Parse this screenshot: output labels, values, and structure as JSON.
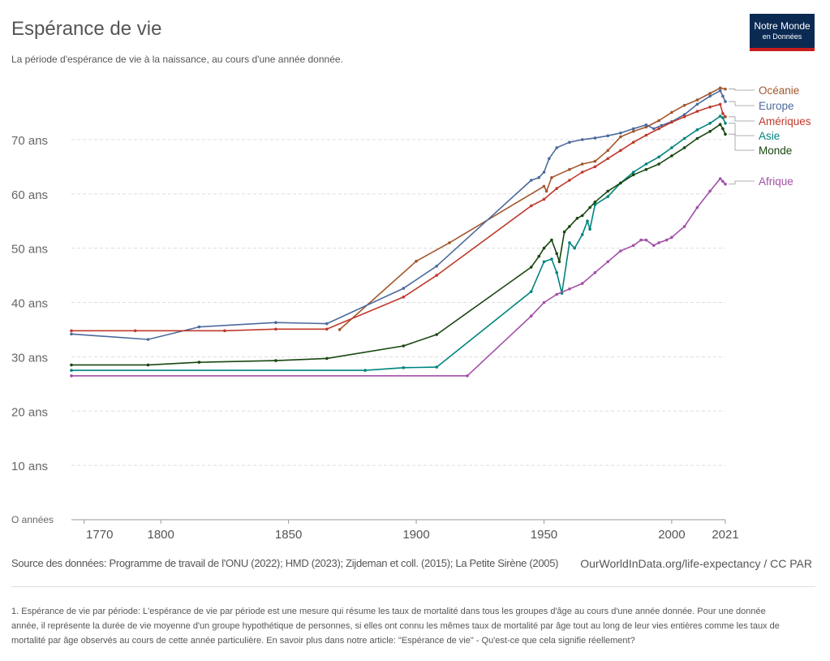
{
  "header": {
    "title": "Espérance de vie",
    "subtitle": "La période d'espérance de vie à la naissance, au cours d'une année donnée."
  },
  "logo": {
    "line1": "Notre Monde",
    "line2": "en Données"
  },
  "footer": {
    "source": "Source des données: Programme de travail de l'ONU (2022); HMD (2023); Zijdeman et coll. (2015); La Petite Sirène (2005)",
    "credit": "OurWorldInData.org/life-expectancy / CC PAR",
    "footnote": "1. Espérance de vie par période: L'espérance de vie par période est une mesure qui résume les taux de mortalité dans tous les groupes d'âge au cours d'une année donnée. Pour une donnée année, il représente la durée de vie moyenne d'un groupe hypothétique de personnes, si elles ont connu les mêmes taux de mortalité par âge tout au long de leur vies entières comme les taux de mortalité par âge observés au cours de cette année particulière. En savoir plus dans notre article: \"Espérance de vie\" - Qu'est-ce que cela signifie réellement?"
  },
  "chart_data": {
    "type": "line",
    "xlim": [
      1765,
      2021
    ],
    "ylim": [
      0,
      80
    ],
    "x_ticks": [
      1770,
      1800,
      1850,
      1900,
      1950,
      2000,
      2021
    ],
    "y_ticks": [
      {
        "value": 0,
        "label": "O années"
      },
      {
        "value": 10,
        "label": "10 ans"
      },
      {
        "value": 20,
        "label": "20 ans"
      },
      {
        "value": 30,
        "label": "30 ans"
      },
      {
        "value": 40,
        "label": "40 ans"
      },
      {
        "value": 50,
        "label": "50 ans"
      },
      {
        "value": 60,
        "label": "60 ans"
      },
      {
        "value": 70,
        "label": "70 ans"
      }
    ],
    "grid": true,
    "legend_placement": "right",
    "series": [
      {
        "name": "Océanie",
        "color": "#a2562c",
        "points": [
          [
            1870,
            35.0
          ],
          [
            1900,
            47.6
          ],
          [
            1913,
            51.0
          ],
          [
            1950,
            61.4
          ],
          [
            1951,
            60.5
          ],
          [
            1953,
            63.0
          ],
          [
            1960,
            64.5
          ],
          [
            1965,
            65.5
          ],
          [
            1970,
            66.0
          ],
          [
            1975,
            68.0
          ],
          [
            1980,
            70.5
          ],
          [
            1985,
            71.5
          ],
          [
            1990,
            72.3
          ],
          [
            1995,
            73.5
          ],
          [
            2000,
            75.0
          ],
          [
            2005,
            76.3
          ],
          [
            2010,
            77.3
          ],
          [
            2015,
            78.5
          ],
          [
            2019,
            79.5
          ],
          [
            2021,
            79.3
          ]
        ]
      },
      {
        "name": "Europe",
        "color": "#4c6a9c",
        "points": [
          [
            1765,
            34.2
          ],
          [
            1795,
            33.2
          ],
          [
            1815,
            35.5
          ],
          [
            1845,
            36.3
          ],
          [
            1865,
            36.1
          ],
          [
            1895,
            42.6
          ],
          [
            1908,
            46.7
          ],
          [
            1945,
            62.5
          ],
          [
            1948,
            63.0
          ],
          [
            1950,
            64.0
          ],
          [
            1952,
            66.5
          ],
          [
            1955,
            68.5
          ],
          [
            1960,
            69.5
          ],
          [
            1965,
            70.0
          ],
          [
            1970,
            70.3
          ],
          [
            1975,
            70.7
          ],
          [
            1980,
            71.2
          ],
          [
            1985,
            72.0
          ],
          [
            1990,
            72.7
          ],
          [
            1993,
            72.0
          ],
          [
            1996,
            72.6
          ],
          [
            2000,
            73.3
          ],
          [
            2005,
            74.6
          ],
          [
            2010,
            76.5
          ],
          [
            2015,
            78.0
          ],
          [
            2019,
            79.0
          ],
          [
            2020,
            78.0
          ],
          [
            2021,
            77.0
          ]
        ]
      },
      {
        "name": "Amériques",
        "color": "#c0392b",
        "points": [
          [
            1765,
            34.8
          ],
          [
            1790,
            34.8
          ],
          [
            1825,
            34.8
          ],
          [
            1845,
            35.1
          ],
          [
            1865,
            35.1
          ],
          [
            1895,
            41.0
          ],
          [
            1908,
            45.0
          ],
          [
            1945,
            57.8
          ],
          [
            1950,
            59.0
          ],
          [
            1955,
            61.0
          ],
          [
            1960,
            62.5
          ],
          [
            1965,
            64.0
          ],
          [
            1970,
            65.0
          ],
          [
            1975,
            66.5
          ],
          [
            1980,
            68.0
          ],
          [
            1985,
            69.5
          ],
          [
            1990,
            70.8
          ],
          [
            1995,
            72.0
          ],
          [
            2000,
            73.2
          ],
          [
            2005,
            74.2
          ],
          [
            2010,
            75.2
          ],
          [
            2015,
            76.0
          ],
          [
            2019,
            76.5
          ],
          [
            2020,
            74.8
          ],
          [
            2021,
            74.2
          ]
        ]
      },
      {
        "name": "Asie",
        "color": "#00847e",
        "points": [
          [
            1765,
            27.5
          ],
          [
            1880,
            27.5
          ],
          [
            1895,
            28.0
          ],
          [
            1908,
            28.1
          ],
          [
            1945,
            42.0
          ],
          [
            1950,
            47.5
          ],
          [
            1953,
            48.0
          ],
          [
            1955,
            45.5
          ],
          [
            1957,
            41.7
          ],
          [
            1960,
            51.0
          ],
          [
            1962,
            50.0
          ],
          [
            1965,
            52.5
          ],
          [
            1967,
            55.0
          ],
          [
            1968,
            53.5
          ],
          [
            1970,
            58.0
          ],
          [
            1975,
            59.5
          ],
          [
            1980,
            62.0
          ],
          [
            1985,
            64.0
          ],
          [
            1990,
            65.5
          ],
          [
            1995,
            66.8
          ],
          [
            2000,
            68.5
          ],
          [
            2005,
            70.2
          ],
          [
            2010,
            71.8
          ],
          [
            2015,
            73.0
          ],
          [
            2019,
            74.3
          ],
          [
            2020,
            74.0
          ],
          [
            2021,
            73.0
          ]
        ]
      },
      {
        "name": "Monde",
        "color": "#18470f",
        "points": [
          [
            1765,
            28.5
          ],
          [
            1795,
            28.5
          ],
          [
            1815,
            29.0
          ],
          [
            1845,
            29.3
          ],
          [
            1865,
            29.7
          ],
          [
            1895,
            32.0
          ],
          [
            1908,
            34.1
          ],
          [
            1945,
            46.5
          ],
          [
            1948,
            48.5
          ],
          [
            1950,
            50.0
          ],
          [
            1953,
            51.5
          ],
          [
            1955,
            49.0
          ],
          [
            1956,
            47.5
          ],
          [
            1958,
            53.0
          ],
          [
            1960,
            54.0
          ],
          [
            1963,
            55.5
          ],
          [
            1965,
            56.0
          ],
          [
            1968,
            57.5
          ],
          [
            1970,
            58.5
          ],
          [
            1975,
            60.5
          ],
          [
            1980,
            62.0
          ],
          [
            1985,
            63.5
          ],
          [
            1990,
            64.5
          ],
          [
            1995,
            65.5
          ],
          [
            2000,
            67.0
          ],
          [
            2005,
            68.5
          ],
          [
            2010,
            70.2
          ],
          [
            2015,
            71.5
          ],
          [
            2019,
            72.8
          ],
          [
            2020,
            72.0
          ],
          [
            2021,
            71.0
          ]
        ]
      },
      {
        "name": "Afrique",
        "color": "#a24fa8",
        "points": [
          [
            1765,
            26.5
          ],
          [
            1920,
            26.5
          ],
          [
            1945,
            37.5
          ],
          [
            1950,
            40.0
          ],
          [
            1955,
            41.5
          ],
          [
            1960,
            42.5
          ],
          [
            1965,
            43.5
          ],
          [
            1970,
            45.5
          ],
          [
            1975,
            47.5
          ],
          [
            1980,
            49.5
          ],
          [
            1985,
            50.5
          ],
          [
            1988,
            51.5
          ],
          [
            1990,
            51.5
          ],
          [
            1993,
            50.5
          ],
          [
            1995,
            51.0
          ],
          [
            1998,
            51.5
          ],
          [
            2000,
            52.0
          ],
          [
            2005,
            54.0
          ],
          [
            2010,
            57.5
          ],
          [
            2015,
            60.5
          ],
          [
            2019,
            62.8
          ],
          [
            2020,
            62.3
          ],
          [
            2021,
            61.8
          ]
        ]
      }
    ]
  }
}
